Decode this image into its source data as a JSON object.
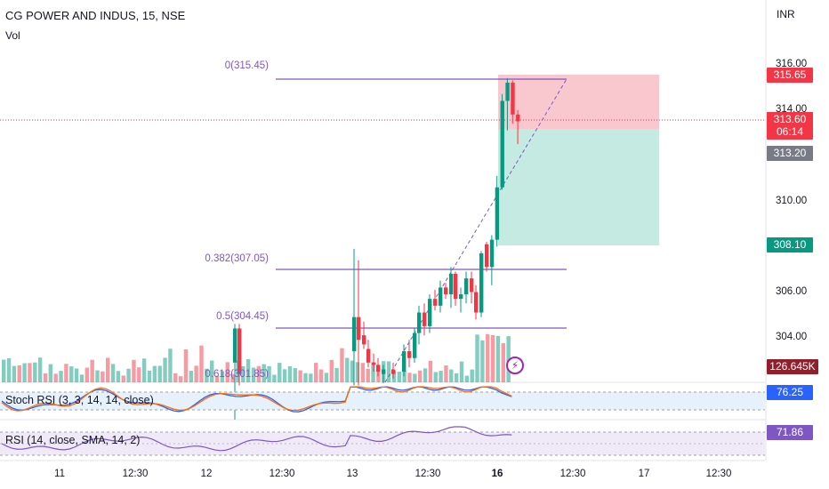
{
  "header": {
    "symbol_line": "CG POWER AND INDUS, 15, NSE",
    "volume_label": "Vol",
    "currency": "INR"
  },
  "colors": {
    "up": "#089981",
    "down": "#f23645",
    "fib_line": "#7e57c2",
    "stop_zone": "#f7b6bd",
    "target_zone": "#b2e3d8",
    "stoch_k": "#2962ff",
    "stoch_d": "#ff6d00",
    "rsi_line": "#7e57c2",
    "band_fill": "#e7f1fb",
    "rsi_band_fill": "#efe9f8"
  },
  "price_axis": {
    "labels": [
      "316.00",
      "314.00",
      "310.00",
      "306.00",
      "304.00"
    ],
    "price_tags": {
      "stop": "315.65",
      "last": "313.60",
      "countdown": "06:14",
      "entry": "313.20",
      "target": "308.10",
      "volume": "126.645K",
      "stoch": "76.25",
      "rsi": "71.86"
    }
  },
  "time_axis": {
    "labels": [
      "11",
      "12:30",
      "12",
      "12:30",
      "13",
      "12:30",
      "16",
      "12:30",
      "17",
      "12:30"
    ],
    "bold_index": 6
  },
  "fib_levels": [
    {
      "label": "0(315.45)",
      "price": 315.45
    },
    {
      "label": "0.382(307.05)",
      "price": 307.05
    },
    {
      "label": "0.5(304.45)",
      "price": 304.45
    },
    {
      "label": "0.618(301.85)",
      "price": 301.85
    }
  ],
  "panes": {
    "stoch_label": "Stoch RSI (3, 3, 14, 14, close)",
    "rsi_label": "RSI (14, close, SMA, 14, 2)"
  },
  "chart_data": {
    "type": "candlestick",
    "title": "CG POWER AND INDUS, 15, NSE",
    "yunit": "INR",
    "ylim": [
      302.0,
      317.0
    ],
    "position_short": {
      "entry": 313.2,
      "stop": 315.65,
      "target": 308.1
    },
    "late_candles": [
      {
        "o": 308.2,
        "h": 308.3,
        "l": 307.0,
        "c": 307.2
      },
      {
        "o": 307.2,
        "h": 308.6,
        "l": 306.4,
        "c": 308.4
      },
      {
        "o": 308.4,
        "h": 311.2,
        "l": 308.1,
        "c": 310.7
      },
      {
        "o": 310.7,
        "h": 314.8,
        "l": 310.6,
        "c": 314.5
      },
      {
        "o": 314.5,
        "h": 315.5,
        "l": 313.2,
        "c": 315.3
      },
      {
        "o": 315.3,
        "h": 315.4,
        "l": 313.5,
        "c": 313.9
      },
      {
        "o": 313.9,
        "h": 314.1,
        "l": 312.6,
        "c": 313.6
      }
    ],
    "stoch_rsi_last": 76.25,
    "rsi_last": 71.86
  }
}
